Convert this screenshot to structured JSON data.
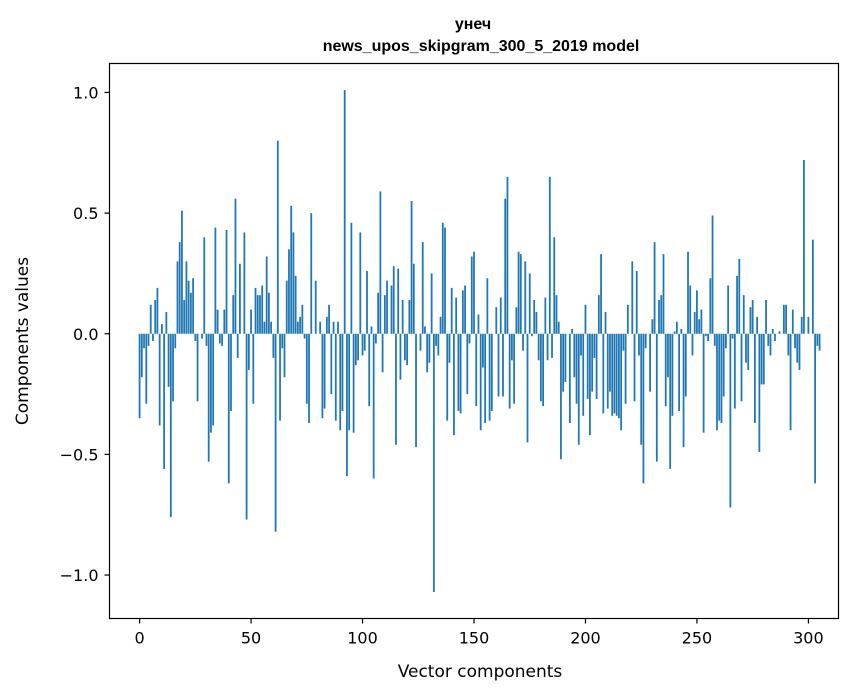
{
  "chart_data": {
    "type": "bar",
    "title": "унеч",
    "subtitle": "news_upos_skipgram_300_5_2019 model",
    "xlabel": "Vector components",
    "ylabel": "Components values",
    "xlim": [
      -13.5,
      313.5
    ],
    "ylim": [
      -1.18,
      1.12
    ],
    "xticks": [
      0,
      50,
      100,
      150,
      200,
      250,
      300
    ],
    "xtick_labels": [
      "0",
      "50",
      "100",
      "150",
      "200",
      "250",
      "300"
    ],
    "yticks": [
      -1.0,
      -0.5,
      0.0,
      0.5,
      1.0
    ],
    "ytick_labels": [
      "−1.0",
      "−0.5",
      "0.0",
      "0.5",
      "1.0"
    ],
    "bar_color": "#1f77b4",
    "values": [
      -0.35,
      -0.18,
      -0.06,
      -0.29,
      -0.05,
      0.12,
      -0.03,
      0.14,
      0.19,
      -0.38,
      0.04,
      -0.56,
      0.09,
      -0.22,
      -0.76,
      -0.28,
      -0.06,
      0.3,
      0.38,
      0.51,
      0.14,
      0.3,
      0.22,
      0.17,
      0.23,
      -0.03,
      -0.28,
      0.0,
      -0.02,
      0.4,
      -0.05,
      -0.53,
      -0.41,
      -0.38,
      0.44,
      0.1,
      -0.04,
      -0.05,
      0.1,
      0.43,
      -0.62,
      -0.32,
      0.16,
      0.56,
      -0.1,
      0.29,
      0.0,
      0.42,
      -0.77,
      -0.15,
      0.1,
      -0.29,
      0.19,
      0.16,
      0.16,
      0.2,
      0.05,
      0.32,
      0.17,
      0.05,
      -0.1,
      -0.82,
      0.8,
      -0.36,
      -0.06,
      -0.18,
      0.22,
      0.35,
      0.53,
      0.42,
      0.24,
      0.05,
      0.07,
      0.12,
      -0.02,
      -0.29,
      -0.37,
      0.5,
      0.0,
      0.22,
      0.0,
      0.05,
      -0.35,
      -0.31,
      0.07,
      0.12,
      -0.25,
      0.05,
      -0.36,
      0.05,
      -0.4,
      -0.32,
      1.01,
      -0.59,
      -0.4,
      0.46,
      -0.41,
      -0.13,
      -0.11,
      0.42,
      -0.09,
      -0.07,
      0.26,
      -0.3,
      0.03,
      -0.6,
      -0.04,
      0.17,
      0.59,
      -0.16,
      0.16,
      0.22,
      0.0,
      0.2,
      0.28,
      -0.46,
      0.27,
      -0.19,
      0.14,
      -0.11,
      -0.13,
      0.14,
      0.55,
      0.29,
      -0.47,
      0.0,
      -0.07,
      0.38,
      0.03,
      -0.16,
      -0.12,
      0.25,
      -1.07,
      -0.05,
      -0.09,
      0.07,
      0.46,
      0.44,
      -0.36,
      -0.12,
      0.19,
      -0.42,
      0.15,
      -0.32,
      -0.33,
      0.18,
      0.2,
      -0.25,
      -0.04,
      0.32,
      0.34,
      -0.3,
      0.08,
      -0.4,
      -0.14,
      -0.37,
      0.23,
      -0.36,
      -0.32,
      0.0,
      0.11,
      -0.26,
      0.15,
      -0.26,
      0.56,
      0.65,
      -0.31,
      -0.11,
      -0.29,
      0.11,
      0.34,
      0.33,
      -0.07,
      0.3,
      -0.45,
      0.25,
      -0.01,
      0.14,
      0.09,
      -0.11,
      -0.28,
      -0.3,
      0.15,
      -0.11,
      0.65,
      -0.1,
      0.4,
      0.16,
      0.05,
      -0.52,
      -0.24,
      -0.2,
      0.0,
      -0.37,
      0.02,
      -0.18,
      -0.29,
      -0.46,
      -0.09,
      -0.34,
      0.12,
      -0.27,
      -0.42,
      -0.24,
      -0.1,
      -0.27,
      0.16,
      0.33,
      -0.33,
      0.09,
      -0.31,
      -0.24,
      -0.34,
      -0.33,
      -0.34,
      -0.35,
      -0.4,
      -0.07,
      -0.29,
      0.12,
      0.0,
      0.3,
      -0.28,
      0.26,
      -0.09,
      -0.46,
      -0.62,
      -0.06,
      0.0,
      -0.24,
      0.06,
      0.38,
      -0.53,
      0.14,
      0.16,
      0.33,
      -0.3,
      -0.18,
      -0.56,
      -0.34,
      0.01,
      0.05,
      -0.32,
      0.02,
      -0.47,
      -0.26,
      0.34,
      0.2,
      -0.09,
      0.09,
      0.18,
      0.06,
      0.1,
      -0.41,
      -0.01,
      -0.03,
      0.23,
      0.49,
      -0.05,
      -0.4,
      -0.36,
      -0.37,
      -0.26,
      -0.06,
      0.2,
      -0.72,
      -0.02,
      -0.31,
      0.24,
      0.31,
      -0.28,
      0.16,
      -0.12,
      -0.15,
      0.11,
      0.14,
      -0.37,
      0.07,
      -0.49,
      -0.21,
      -0.21,
      0.14,
      -0.05,
      -0.09,
      0.02,
      -0.03,
      0.0,
      0.01,
      0.0,
      0.12,
      0.12,
      -0.09,
      -0.4,
      0.1,
      -0.06,
      -0.12,
      -0.15,
      0.07,
      0.72,
      0.0,
      0.07,
      0.0,
      0.39,
      -0.62,
      -0.05,
      -0.07
    ]
  }
}
